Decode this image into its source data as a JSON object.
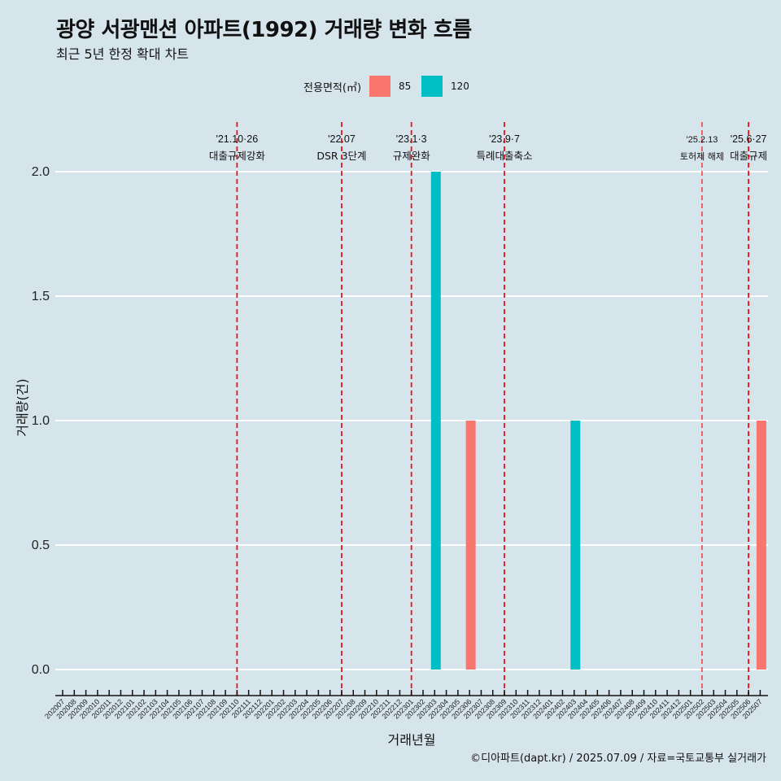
{
  "title": "광양 서광맨션 아파트(1992) 거래량 변화 흐름",
  "subtitle": "최근 5년 한정 확대 차트",
  "legend": {
    "title": "전용면적(㎡)",
    "items": [
      {
        "label": "85",
        "color": "#F8766D"
      },
      {
        "label": "120",
        "color": "#00BFC4"
      }
    ]
  },
  "caption": "©디아파트(dapt.kr) / 2025.07.09 / 자료=국토교통부 실거래가",
  "chart_data": {
    "type": "bar",
    "xlabel": "거래년월",
    "ylabel": "거래량(건)",
    "ylim": [
      0,
      2
    ],
    "yticks": [
      "0.0",
      "0.5",
      "1.0",
      "1.5",
      "2.0"
    ],
    "categories": [
      "202007",
      "202008",
      "202009",
      "202010",
      "202011",
      "202012",
      "202101",
      "202102",
      "202103",
      "202104",
      "202105",
      "202106",
      "202107",
      "202108",
      "202109",
      "202110",
      "202111",
      "202112",
      "202201",
      "202202",
      "202203",
      "202204",
      "202205",
      "202206",
      "202207",
      "202208",
      "202209",
      "202210",
      "202211",
      "202212",
      "202301",
      "202302",
      "202303",
      "202304",
      "202305",
      "202306",
      "202307",
      "202308",
      "202309",
      "202310",
      "202311",
      "202312",
      "202401",
      "202402",
      "202403",
      "202404",
      "202405",
      "202406",
      "202407",
      "202408",
      "202409",
      "202410",
      "202411",
      "202412",
      "202501",
      "202502",
      "202503",
      "202504",
      "202505",
      "202506",
      "202507"
    ],
    "series": [
      {
        "name": "85",
        "color": "#F8766D",
        "points": [
          {
            "x": "202306",
            "y": 1
          },
          {
            "x": "202507",
            "y": 1
          }
        ]
      },
      {
        "name": "120",
        "color": "#00BFC4",
        "points": [
          {
            "x": "202303",
            "y": 2
          },
          {
            "x": "202403",
            "y": 1
          }
        ]
      }
    ],
    "events": [
      {
        "x": "202110",
        "date": "'21.10·26",
        "label": "대출규제강화"
      },
      {
        "x": "202207",
        "date": "'22.07",
        "label": "DSR 3단계"
      },
      {
        "x": "202301",
        "date": "'23.1·3",
        "label": "규제완화"
      },
      {
        "x": "202309",
        "date": "'23.9·7",
        "label": "특례대출축소"
      },
      {
        "x": "202502",
        "date": "'25.2.13",
        "label": "토허제 해제",
        "small": true
      },
      {
        "x": "202506",
        "date": "'25.6·27",
        "label": "대출규제"
      }
    ],
    "grid": true,
    "legend_position": "top"
  }
}
